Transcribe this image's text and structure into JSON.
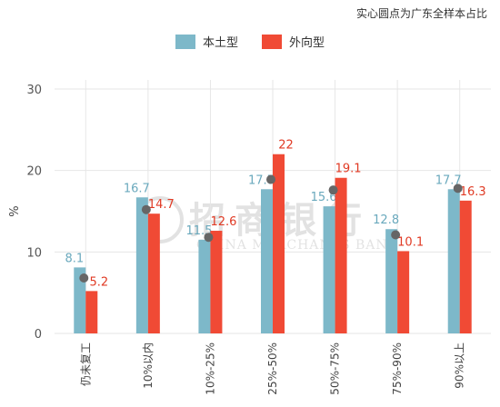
{
  "note": "实心圆点为广东全样本占比",
  "colors": {
    "local": "#7db8c9",
    "foreign": "#f04a35",
    "dot": "#666666",
    "grid": "#e6e6e6"
  },
  "watermark": {
    "main": "招商银行",
    "sub": "CHINA MERCHANTS BANK"
  },
  "chart_data": {
    "type": "bar",
    "ylabel": "%",
    "ylim": [
      0,
      30
    ],
    "yticks": [
      0,
      10,
      20,
      30
    ],
    "categories": [
      "仍未复工",
      "10%以内",
      "10%-25%",
      "25%-50%",
      "50%-75%",
      "75%-90%",
      "90%以上"
    ],
    "series": [
      {
        "name": "本土型",
        "values": [
          8.1,
          16.7,
          11.5,
          17.7,
          15.6,
          12.8,
          17.7
        ],
        "labels": [
          "8.1",
          "16.7",
          "11.5",
          "17.7",
          "15.6",
          "12.8",
          "17.7"
        ]
      },
      {
        "name": "外向型",
        "values": [
          5.2,
          14.7,
          12.6,
          22,
          19.1,
          10.1,
          16.3
        ],
        "labels": [
          "5.2",
          "14.7",
          "12.6",
          "22",
          "19.1",
          "10.1",
          "16.3"
        ]
      }
    ],
    "dots": [
      6.8,
      15.2,
      11.8,
      18.9,
      17.6,
      12.1,
      17.8
    ],
    "legend_position": "top"
  }
}
